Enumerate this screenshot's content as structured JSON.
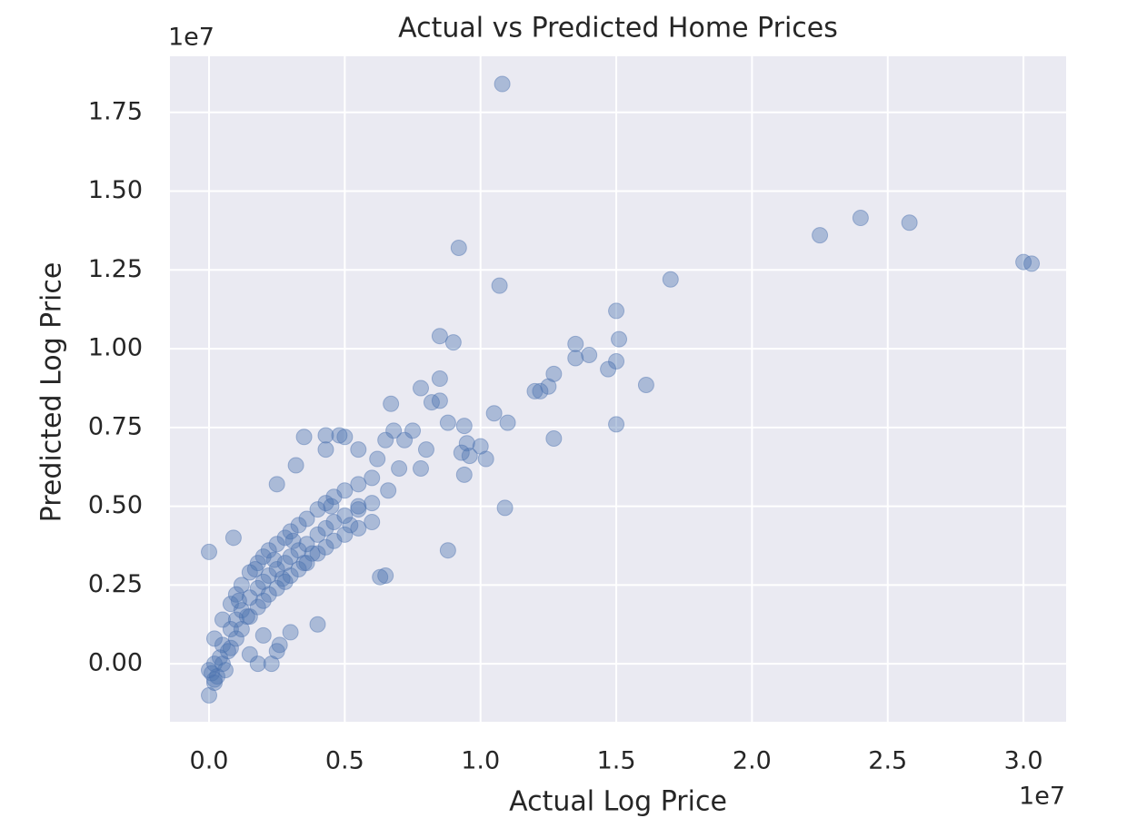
{
  "chart_data": {
    "type": "scatter",
    "title": "Actual vs Predicted Home Prices",
    "x_label": "Actual Log Price",
    "y_label": "Predicted Log Price",
    "x_offset_label": "1e7",
    "y_offset_label": "1e7",
    "color": "#4c72b0",
    "grid": true,
    "xlim": [
      -0.144,
      3.157
    ],
    "ylim": [
      -0.184,
      1.928
    ],
    "xticks": [
      {
        "value": 0,
        "label": "0.0"
      },
      0.5,
      {
        "value": 1,
        "label": "1.0"
      },
      1.5,
      {
        "value": 2,
        "label": "2.0"
      },
      2.5,
      {
        "value": 3,
        "label": "3.0"
      }
    ],
    "yticks": [
      {
        "value": 0,
        "label": "0.00"
      },
      0.25,
      {
        "value": 0.5,
        "label": "0.50"
      },
      0.75,
      {
        "value": 1,
        "label": "1.00"
      },
      1.25,
      {
        "value": 1.5,
        "label": "1.50"
      },
      1.75
    ],
    "x": [
      1.08,
      0.92,
      1.07,
      2.25,
      2.4,
      2.58,
      3.0,
      3.03,
      1.7,
      1.5,
      1.51,
      1.35,
      1.4,
      1.35,
      1.47,
      1.5,
      1.61,
      1.5,
      1.27,
      1.27,
      1.25,
      1.22,
      1.2,
      1.05,
      1.1,
      1.09,
      0.88,
      0.85,
      0.9,
      0.85,
      0.78,
      0.82,
      0.85,
      0.88,
      0.94,
      0.95,
      1.0,
      0.93,
      0.96,
      1.02,
      0.94,
      0.67,
      0.68,
      0.75,
      0.72,
      0.65,
      0.62,
      0.8,
      0.78,
      0.7,
      0.66,
      0.55,
      0.5,
      0.48,
      0.43,
      0.35,
      0.43,
      0.25,
      0.32,
      0.65,
      0.63,
      0.4,
      0.3,
      0.26,
      0.25,
      0.23,
      0.18,
      0.0,
      0.09,
      0.0,
      0.15,
      0.2,
      0.01,
      0.02,
      0.03,
      0.0,
      0.04,
      0.06,
      0.55,
      0.35,
      0.02,
      0.05,
      0.08,
      0.1,
      0.12,
      0.15,
      0.18,
      0.2,
      0.22,
      0.25,
      0.28,
      0.3,
      0.33,
      0.36,
      0.4,
      0.43,
      0.46,
      0.5,
      0.55,
      0.6,
      0.02,
      0.05,
      0.08,
      0.1,
      0.12,
      0.15,
      0.18,
      0.2,
      0.22,
      0.25,
      0.28,
      0.3,
      0.33,
      0.36,
      0.4,
      0.43,
      0.46,
      0.5,
      0.55,
      0.6,
      0.02,
      0.05,
      0.08,
      0.1,
      0.12,
      0.15,
      0.18,
      0.2,
      0.22,
      0.25,
      0.28,
      0.3,
      0.33,
      0.36,
      0.4,
      0.43,
      0.46,
      0.5,
      0.55,
      0.6,
      0.07,
      0.11,
      0.14,
      0.17,
      0.24,
      0.27,
      0.31,
      0.38,
      0.45,
      0.52
    ],
    "values": [
      1.84,
      1.32,
      1.2,
      1.36,
      1.415,
      1.4,
      1.275,
      1.27,
      1.22,
      1.12,
      1.03,
      1.015,
      0.98,
      0.97,
      0.935,
      0.96,
      0.885,
      0.76,
      0.715,
      0.92,
      0.88,
      0.865,
      0.865,
      0.795,
      0.765,
      0.495,
      0.36,
      1.04,
      1.02,
      0.905,
      0.875,
      0.83,
      0.835,
      0.765,
      0.755,
      0.7,
      0.69,
      0.67,
      0.66,
      0.65,
      0.6,
      0.825,
      0.74,
      0.74,
      0.71,
      0.71,
      0.65,
      0.68,
      0.62,
      0.62,
      0.55,
      0.68,
      0.72,
      0.725,
      0.725,
      0.72,
      0.68,
      0.57,
      0.63,
      0.28,
      0.275,
      0.125,
      0.1,
      0.06,
      0.04,
      0.0,
      0.0,
      0.355,
      0.4,
      -0.1,
      0.03,
      0.09,
      -0.03,
      -0.05,
      -0.04,
      -0.02,
      0.02,
      -0.02,
      0.5,
      0.32,
      0.0,
      0.06,
      0.11,
      0.14,
      0.17,
      0.21,
      0.24,
      0.26,
      0.28,
      0.3,
      0.32,
      0.34,
      0.36,
      0.38,
      0.41,
      0.43,
      0.45,
      0.47,
      0.49,
      0.51,
      0.08,
      0.14,
      0.19,
      0.22,
      0.25,
      0.29,
      0.32,
      0.34,
      0.36,
      0.38,
      0.4,
      0.42,
      0.44,
      0.46,
      0.49,
      0.51,
      0.53,
      0.55,
      0.57,
      0.59,
      -0.06,
      0.0,
      0.05,
      0.08,
      0.11,
      0.15,
      0.18,
      0.2,
      0.22,
      0.24,
      0.26,
      0.28,
      0.3,
      0.32,
      0.35,
      0.37,
      0.39,
      0.41,
      0.43,
      0.45,
      0.04,
      0.2,
      0.15,
      0.3,
      0.33,
      0.27,
      0.39,
      0.35,
      0.5,
      0.44
    ]
  }
}
